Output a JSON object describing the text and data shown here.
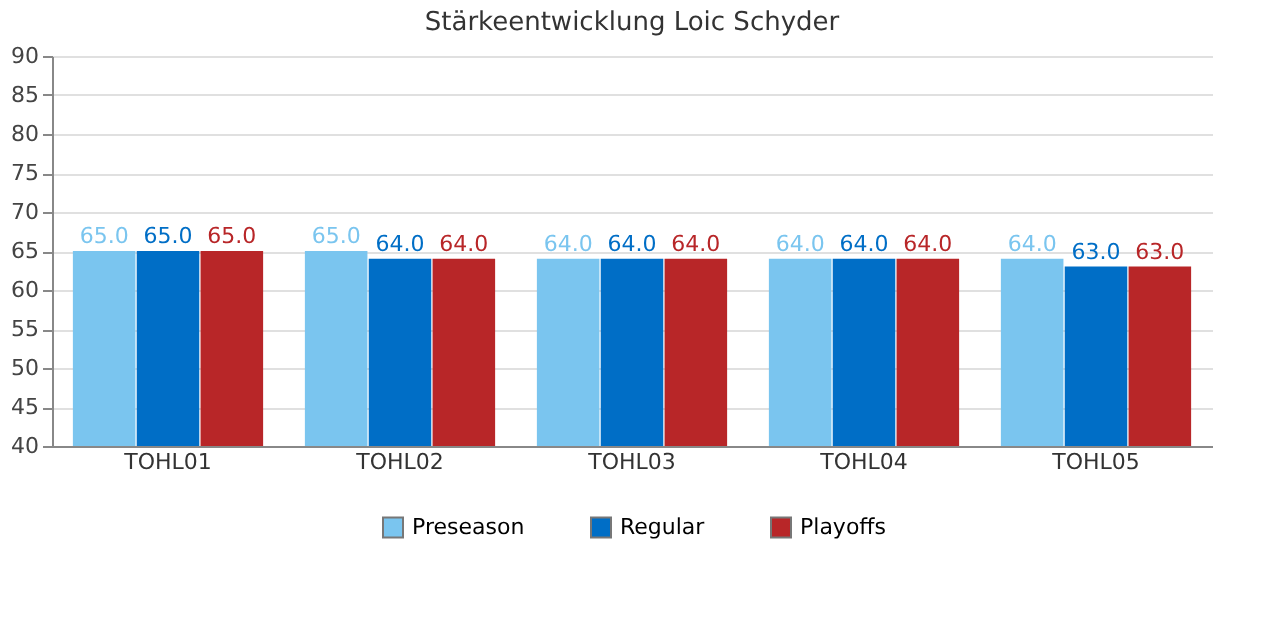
{
  "chart_data": {
    "type": "bar",
    "title": "Stärkeentwicklung Loic Schyder",
    "categories": [
      "TOHL01",
      "TOHL02",
      "TOHL03",
      "TOHL04",
      "TOHL05"
    ],
    "series": [
      {
        "name": "Preseason",
        "color": "#7ac5ef",
        "values": [
          65,
          65,
          64,
          64,
          64
        ],
        "value_labels": [
          "65.0",
          "65.0",
          "64.0",
          "64.0",
          "64.0"
        ]
      },
      {
        "name": "Regular",
        "color": "#006ec6",
        "values": [
          65,
          64,
          64,
          64,
          63
        ],
        "value_labels": [
          "65.0",
          "64.0",
          "64.0",
          "64.0",
          "63.0"
        ]
      },
      {
        "name": "Playoffs",
        "color": "#b82628",
        "values": [
          65,
          64,
          64,
          64,
          63
        ],
        "value_labels": [
          "65.0",
          "64.0",
          "64.0",
          "64.0",
          "63.0"
        ]
      }
    ],
    "ylim": [
      40,
      90
    ],
    "yticks": [
      40,
      45,
      50,
      55,
      60,
      65,
      70,
      75,
      80,
      85,
      90
    ],
    "grid": "y",
    "legend": "bottom"
  }
}
